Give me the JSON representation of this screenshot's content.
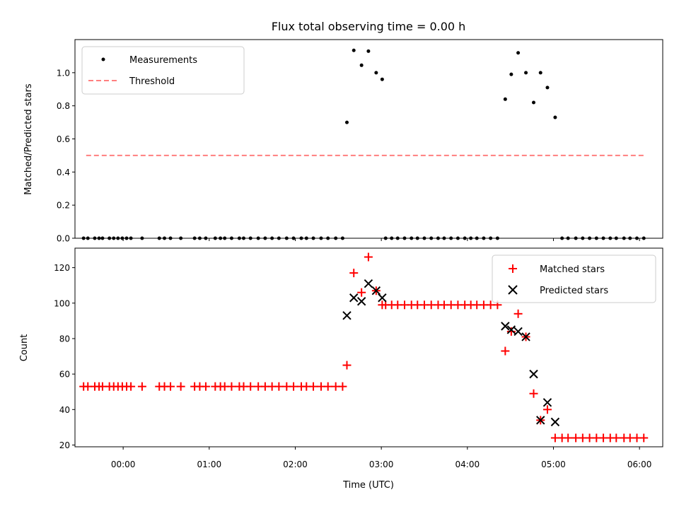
{
  "chart_data": [
    {
      "id": "top",
      "type": "scatter",
      "title": "Flux total observing time = 0.00 h",
      "xlabel": "",
      "ylabel": "Matched/Predicted stars",
      "xlim": [
        -0.56,
        6.27
      ],
      "ylim": [
        0,
        1.2
      ],
      "yticks": [
        0,
        0.2,
        0.4,
        0.6,
        0.8,
        1.0
      ],
      "ytick_labels": [
        "0.0",
        "0.2",
        "0.4",
        "0.6",
        "0.8",
        "1.0"
      ],
      "legend_position": "upper-left",
      "series": [
        {
          "name": "Measurements",
          "marker": "dot",
          "color": "#000000",
          "points": [
            [
              -0.46,
              0
            ],
            [
              -0.41,
              0
            ],
            [
              -0.33,
              0
            ],
            [
              -0.28,
              0
            ],
            [
              -0.24,
              0
            ],
            [
              -0.16,
              0
            ],
            [
              -0.11,
              0
            ],
            [
              -0.06,
              0
            ],
            [
              -0.01,
              0
            ],
            [
              0.04,
              0
            ],
            [
              0.09,
              0
            ],
            [
              0.22,
              0
            ],
            [
              0.42,
              0
            ],
            [
              0.48,
              0
            ],
            [
              0.55,
              0
            ],
            [
              0.67,
              0
            ],
            [
              0.83,
              0
            ],
            [
              0.89,
              0
            ],
            [
              0.96,
              0
            ],
            [
              1.07,
              0
            ],
            [
              1.13,
              0
            ],
            [
              1.18,
              0
            ],
            [
              1.26,
              0
            ],
            [
              1.35,
              0
            ],
            [
              1.4,
              0
            ],
            [
              1.48,
              0
            ],
            [
              1.57,
              0
            ],
            [
              1.65,
              0
            ],
            [
              1.73,
              0
            ],
            [
              1.81,
              0
            ],
            [
              1.9,
              0
            ],
            [
              1.98,
              0
            ],
            [
              2.07,
              0
            ],
            [
              2.13,
              0
            ],
            [
              2.21,
              0
            ],
            [
              2.3,
              0
            ],
            [
              2.38,
              0
            ],
            [
              2.47,
              0
            ],
            [
              2.55,
              0
            ],
            [
              2.6,
              0.7
            ],
            [
              2.68,
              1.135
            ],
            [
              2.77,
              1.045
            ],
            [
              2.85,
              1.13
            ],
            [
              2.94,
              1.0
            ],
            [
              3.01,
              0.96
            ],
            [
              3.05,
              0
            ],
            [
              3.12,
              0
            ],
            [
              3.19,
              0
            ],
            [
              3.27,
              0
            ],
            [
              3.35,
              0
            ],
            [
              3.42,
              0
            ],
            [
              3.5,
              0
            ],
            [
              3.58,
              0
            ],
            [
              3.66,
              0
            ],
            [
              3.73,
              0
            ],
            [
              3.81,
              0
            ],
            [
              3.89,
              0
            ],
            [
              3.97,
              0
            ],
            [
              4.04,
              0
            ],
            [
              4.11,
              0
            ],
            [
              4.19,
              0
            ],
            [
              4.27,
              0
            ],
            [
              4.35,
              0
            ],
            [
              4.44,
              0.84
            ],
            [
              4.51,
              0.99
            ],
            [
              4.59,
              1.12
            ],
            [
              4.68,
              1.0
            ],
            [
              4.77,
              0.82
            ],
            [
              4.85,
              1.0
            ],
            [
              4.93,
              0.91
            ],
            [
              5.02,
              0.73
            ],
            [
              5.1,
              0
            ],
            [
              5.17,
              0
            ],
            [
              5.26,
              0
            ],
            [
              5.34,
              0
            ],
            [
              5.42,
              0
            ],
            [
              5.5,
              0
            ],
            [
              5.58,
              0
            ],
            [
              5.66,
              0
            ],
            [
              5.73,
              0
            ],
            [
              5.82,
              0
            ],
            [
              5.89,
              0
            ],
            [
              5.97,
              0
            ],
            [
              6.05,
              0
            ]
          ]
        },
        {
          "name": "Threshold",
          "marker": "dashed-line",
          "color": "#ff7f7f",
          "points": [
            [
              -0.43,
              0.5
            ],
            [
              6.05,
              0.5
            ]
          ]
        }
      ]
    },
    {
      "id": "bottom",
      "type": "scatter",
      "title": "",
      "xlabel": "Time (UTC)",
      "ylabel": "Count",
      "xlim": [
        -0.56,
        6.27
      ],
      "ylim": [
        19,
        131
      ],
      "yticks": [
        20,
        40,
        60,
        80,
        100,
        120
      ],
      "ytick_labels": [
        "20",
        "40",
        "60",
        "80",
        "100",
        "120"
      ],
      "xticks": [
        0,
        1,
        2,
        3,
        4,
        5,
        6
      ],
      "xtick_labels": [
        "00:00",
        "01:00",
        "02:00",
        "03:00",
        "04:00",
        "05:00",
        "06:00"
      ],
      "legend_position": "upper-right",
      "series": [
        {
          "name": "Matched stars",
          "marker": "plus",
          "color": "#ff0000",
          "points": [
            [
              -0.46,
              53
            ],
            [
              -0.41,
              53
            ],
            [
              -0.33,
              53
            ],
            [
              -0.28,
              53
            ],
            [
              -0.24,
              53
            ],
            [
              -0.16,
              53
            ],
            [
              -0.11,
              53
            ],
            [
              -0.06,
              53
            ],
            [
              -0.01,
              53
            ],
            [
              0.04,
              53
            ],
            [
              0.09,
              53
            ],
            [
              0.22,
              53
            ],
            [
              0.42,
              53
            ],
            [
              0.48,
              53
            ],
            [
              0.55,
              53
            ],
            [
              0.67,
              53
            ],
            [
              0.83,
              53
            ],
            [
              0.89,
              53
            ],
            [
              0.96,
              53
            ],
            [
              1.07,
              53
            ],
            [
              1.13,
              53
            ],
            [
              1.18,
              53
            ],
            [
              1.26,
              53
            ],
            [
              1.35,
              53
            ],
            [
              1.4,
              53
            ],
            [
              1.48,
              53
            ],
            [
              1.57,
              53
            ],
            [
              1.65,
              53
            ],
            [
              1.73,
              53
            ],
            [
              1.81,
              53
            ],
            [
              1.9,
              53
            ],
            [
              1.98,
              53
            ],
            [
              2.07,
              53
            ],
            [
              2.13,
              53
            ],
            [
              2.21,
              53
            ],
            [
              2.3,
              53
            ],
            [
              2.38,
              53
            ],
            [
              2.47,
              53
            ],
            [
              2.55,
              53
            ],
            [
              2.6,
              65
            ],
            [
              2.68,
              117
            ],
            [
              2.77,
              106
            ],
            [
              2.85,
              126
            ],
            [
              2.94,
              107
            ],
            [
              3.01,
              99
            ],
            [
              3.05,
              99
            ],
            [
              3.12,
              99
            ],
            [
              3.19,
              99
            ],
            [
              3.27,
              99
            ],
            [
              3.35,
              99
            ],
            [
              3.42,
              99
            ],
            [
              3.5,
              99
            ],
            [
              3.58,
              99
            ],
            [
              3.66,
              99
            ],
            [
              3.73,
              99
            ],
            [
              3.81,
              99
            ],
            [
              3.89,
              99
            ],
            [
              3.97,
              99
            ],
            [
              4.04,
              99
            ],
            [
              4.11,
              99
            ],
            [
              4.19,
              99
            ],
            [
              4.27,
              99
            ],
            [
              4.35,
              99
            ],
            [
              4.44,
              73
            ],
            [
              4.51,
              84
            ],
            [
              4.59,
              94
            ],
            [
              4.68,
              81
            ],
            [
              4.77,
              49
            ],
            [
              4.85,
              34
            ],
            [
              4.93,
              40
            ],
            [
              5.02,
              24
            ],
            [
              5.1,
              24
            ],
            [
              5.17,
              24
            ],
            [
              5.26,
              24
            ],
            [
              5.34,
              24
            ],
            [
              5.42,
              24
            ],
            [
              5.5,
              24
            ],
            [
              5.58,
              24
            ],
            [
              5.66,
              24
            ],
            [
              5.73,
              24
            ],
            [
              5.82,
              24
            ],
            [
              5.89,
              24
            ],
            [
              5.97,
              24
            ],
            [
              6.05,
              24
            ]
          ]
        },
        {
          "name": "Predicted stars",
          "marker": "x",
          "color": "#000000",
          "points": [
            [
              2.6,
              93
            ],
            [
              2.68,
              103
            ],
            [
              2.77,
              101
            ],
            [
              2.85,
              111
            ],
            [
              2.94,
              107
            ],
            [
              3.01,
              103
            ],
            [
              4.44,
              87
            ],
            [
              4.51,
              85
            ],
            [
              4.59,
              84
            ],
            [
              4.68,
              81
            ],
            [
              4.77,
              60
            ],
            [
              4.85,
              34
            ],
            [
              4.93,
              44
            ],
            [
              5.02,
              33
            ]
          ]
        }
      ]
    }
  ]
}
